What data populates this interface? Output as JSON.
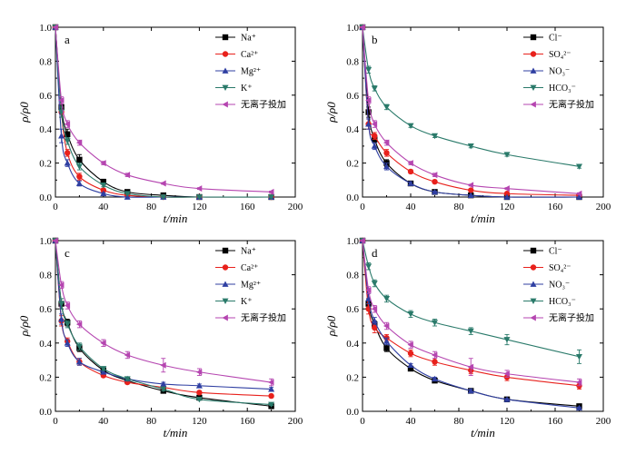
{
  "chart_data": [
    {
      "panel": "a",
      "type": "line",
      "xlabel": "t/min",
      "ylabel": "ρ/ρ0",
      "xlim": [
        0,
        200
      ],
      "ylim": [
        0,
        1.0
      ],
      "xticks": [
        0,
        40,
        80,
        120,
        160,
        200
      ],
      "yticks": [
        0.0,
        0.2,
        0.4,
        0.6,
        0.8,
        1.0
      ],
      "series": [
        {
          "name": "Na⁺",
          "color": "#000000",
          "marker": "square",
          "x": [
            0,
            5,
            10,
            20,
            40,
            60,
            90,
            120,
            180
          ],
          "y": [
            1.0,
            0.53,
            0.37,
            0.22,
            0.09,
            0.03,
            0.01,
            0.0,
            0.0
          ],
          "err": [
            0,
            0.04,
            0.03,
            0.03,
            0.015,
            0.01,
            0.005,
            0,
            0
          ]
        },
        {
          "name": "Ca²⁺",
          "color": "#e8211c",
          "marker": "circle",
          "x": [
            0,
            5,
            10,
            20,
            40,
            60,
            90,
            120,
            180
          ],
          "y": [
            1.0,
            0.5,
            0.26,
            0.12,
            0.04,
            0.01,
            0.0,
            0.0,
            0.0
          ],
          "err": [
            0,
            0.03,
            0.02,
            0.02,
            0.01,
            0.005,
            0,
            0,
            0
          ]
        },
        {
          "name": "Mg²⁺",
          "color": "#2f3fa2",
          "marker": "triangle-up",
          "x": [
            0,
            5,
            10,
            20,
            40,
            60,
            90,
            120,
            180
          ],
          "y": [
            1.0,
            0.36,
            0.2,
            0.08,
            0.02,
            0.0,
            0.0,
            0.0,
            0.0
          ],
          "err": [
            0,
            0.04,
            0.02,
            0.015,
            0.005,
            0,
            0,
            0,
            0
          ]
        },
        {
          "name": "K⁺",
          "color": "#2a7a6a",
          "marker": "triangle-down",
          "x": [
            0,
            5,
            10,
            20,
            40,
            60,
            90,
            120,
            180
          ],
          "y": [
            1.0,
            0.5,
            0.33,
            0.18,
            0.07,
            0.02,
            0.0,
            0.0,
            0.0
          ],
          "err": [
            0,
            0.03,
            0.02,
            0.02,
            0.01,
            0.005,
            0,
            0,
            0
          ]
        },
        {
          "name": "无离子投加",
          "color": "#b545b0",
          "marker": "triangle-left",
          "x": [
            0,
            5,
            10,
            20,
            40,
            60,
            90,
            120,
            180
          ],
          "y": [
            1.0,
            0.57,
            0.43,
            0.32,
            0.2,
            0.13,
            0.08,
            0.05,
            0.03
          ],
          "err": [
            0,
            0.02,
            0.02,
            0.015,
            0.01,
            0.01,
            0.005,
            0.005,
            0.005
          ]
        }
      ]
    },
    {
      "panel": "b",
      "type": "line",
      "xlabel": "t/min",
      "ylabel": "ρ/ρ0",
      "xlim": [
        0,
        200
      ],
      "ylim": [
        0,
        1.0
      ],
      "xticks": [
        0,
        40,
        80,
        120,
        160,
        200
      ],
      "yticks": [
        0.0,
        0.2,
        0.4,
        0.6,
        0.8,
        1.0
      ],
      "series": [
        {
          "name": "Cl⁻",
          "color": "#000000",
          "marker": "square",
          "x": [
            0,
            5,
            10,
            20,
            40,
            60,
            90,
            120,
            180
          ],
          "y": [
            1.0,
            0.5,
            0.34,
            0.2,
            0.08,
            0.03,
            0.01,
            0.0,
            0.0
          ],
          "err": [
            0,
            0.03,
            0.02,
            0.02,
            0.01,
            0.005,
            0,
            0,
            0
          ]
        },
        {
          "name": "SO₄²⁻",
          "color": "#e8211c",
          "marker": "circle",
          "x": [
            0,
            5,
            10,
            20,
            40,
            60,
            90,
            120,
            180
          ],
          "y": [
            1.0,
            0.43,
            0.36,
            0.26,
            0.15,
            0.09,
            0.04,
            0.02,
            0.01
          ],
          "err": [
            0,
            0.03,
            0.02,
            0.02,
            0.01,
            0.01,
            0.005,
            0.005,
            0
          ]
        },
        {
          "name": "NO₃⁻",
          "color": "#2f3fa2",
          "marker": "triangle-up",
          "x": [
            0,
            5,
            10,
            20,
            40,
            60,
            90,
            120,
            180
          ],
          "y": [
            1.0,
            0.43,
            0.3,
            0.18,
            0.08,
            0.03,
            0.01,
            0.0,
            0.0
          ],
          "err": [
            0,
            0.03,
            0.02,
            0.02,
            0.01,
            0.005,
            0,
            0,
            0
          ]
        },
        {
          "name": "HCO₃⁻",
          "color": "#2a7a6a",
          "marker": "triangle-down",
          "x": [
            0,
            5,
            10,
            20,
            40,
            60,
            90,
            120,
            180
          ],
          "y": [
            1.0,
            0.75,
            0.64,
            0.53,
            0.42,
            0.36,
            0.3,
            0.25,
            0.18
          ],
          "err": [
            0,
            0.02,
            0.015,
            0.015,
            0.01,
            0.01,
            0.01,
            0.01,
            0.01
          ]
        },
        {
          "name": "无离子投加",
          "color": "#b545b0",
          "marker": "triangle-left",
          "x": [
            0,
            5,
            10,
            20,
            40,
            60,
            90,
            120,
            180
          ],
          "y": [
            1.0,
            0.57,
            0.43,
            0.32,
            0.2,
            0.13,
            0.07,
            0.05,
            0.02
          ],
          "err": [
            0,
            0.02,
            0.02,
            0.015,
            0.01,
            0.01,
            0.005,
            0.005,
            0.005
          ]
        }
      ]
    },
    {
      "panel": "c",
      "type": "line",
      "xlabel": "t/min",
      "ylabel": "ρ/ρ0",
      "xlim": [
        0,
        200
      ],
      "ylim": [
        0,
        1.0
      ],
      "xticks": [
        0,
        40,
        80,
        120,
        160,
        200
      ],
      "yticks": [
        0.0,
        0.2,
        0.4,
        0.6,
        0.8,
        1.0
      ],
      "series": [
        {
          "name": "Na⁺",
          "color": "#000000",
          "marker": "square",
          "x": [
            0,
            5,
            10,
            20,
            40,
            60,
            90,
            120,
            180
          ],
          "y": [
            1.0,
            0.63,
            0.52,
            0.37,
            0.24,
            0.18,
            0.12,
            0.08,
            0.03
          ],
          "err": [
            0,
            0.03,
            0.02,
            0.02,
            0.01,
            0.01,
            0.01,
            0.005,
            0.005
          ]
        },
        {
          "name": "Ca²⁺",
          "color": "#e8211c",
          "marker": "circle",
          "x": [
            0,
            5,
            10,
            20,
            40,
            60,
            90,
            120,
            180
          ],
          "y": [
            1.0,
            0.53,
            0.41,
            0.29,
            0.21,
            0.17,
            0.14,
            0.11,
            0.09
          ],
          "err": [
            0,
            0.03,
            0.02,
            0.02,
            0.01,
            0.01,
            0.01,
            0.01,
            0.01
          ]
        },
        {
          "name": "Mg²⁺",
          "color": "#2f3fa2",
          "marker": "triangle-up",
          "x": [
            0,
            5,
            10,
            20,
            40,
            60,
            90,
            120,
            180
          ],
          "y": [
            1.0,
            0.54,
            0.4,
            0.29,
            0.23,
            0.19,
            0.16,
            0.15,
            0.13
          ],
          "err": [
            0,
            0.03,
            0.02,
            0.02,
            0.01,
            0.01,
            0.01,
            0.01,
            0.01
          ]
        },
        {
          "name": "K⁺",
          "color": "#2a7a6a",
          "marker": "triangle-down",
          "x": [
            0,
            5,
            10,
            20,
            40,
            60,
            90,
            120,
            180
          ],
          "y": [
            1.0,
            0.63,
            0.51,
            0.38,
            0.25,
            0.19,
            0.13,
            0.07,
            0.04
          ],
          "err": [
            0,
            0.03,
            0.02,
            0.02,
            0.01,
            0.01,
            0.01,
            0.005,
            0.005
          ]
        },
        {
          "name": "无离子投加",
          "color": "#b545b0",
          "marker": "triangle-left",
          "x": [
            0,
            5,
            10,
            20,
            40,
            60,
            90,
            120,
            180
          ],
          "y": [
            1.0,
            0.74,
            0.62,
            0.51,
            0.4,
            0.33,
            0.27,
            0.23,
            0.17
          ],
          "err": [
            0,
            0.02,
            0.02,
            0.02,
            0.02,
            0.02,
            0.04,
            0.02,
            0.02
          ]
        }
      ]
    },
    {
      "panel": "d",
      "type": "line",
      "xlabel": "t/min",
      "ylabel": "ρ/ρ0",
      "xlim": [
        0,
        200
      ],
      "ylim": [
        0,
        1.0
      ],
      "xticks": [
        0,
        40,
        80,
        120,
        160,
        200
      ],
      "yticks": [
        0.0,
        0.2,
        0.4,
        0.6,
        0.8,
        1.0
      ],
      "series": [
        {
          "name": "Cl⁻",
          "color": "#000000",
          "marker": "square",
          "x": [
            0,
            5,
            10,
            20,
            40,
            60,
            90,
            120,
            180
          ],
          "y": [
            1.0,
            0.63,
            0.51,
            0.37,
            0.25,
            0.18,
            0.12,
            0.07,
            0.03
          ],
          "err": [
            0,
            0.03,
            0.02,
            0.02,
            0.01,
            0.01,
            0.01,
            0.005,
            0.005
          ]
        },
        {
          "name": "SO₄²⁻",
          "color": "#e8211c",
          "marker": "circle",
          "x": [
            0,
            5,
            10,
            20,
            40,
            60,
            90,
            120,
            180
          ],
          "y": [
            1.0,
            0.6,
            0.49,
            0.43,
            0.34,
            0.29,
            0.24,
            0.2,
            0.15
          ],
          "err": [
            0,
            0.03,
            0.03,
            0.02,
            0.02,
            0.02,
            0.02,
            0.02,
            0.02
          ]
        },
        {
          "name": "NO₃⁻",
          "color": "#2f3fa2",
          "marker": "triangle-up",
          "x": [
            0,
            5,
            10,
            20,
            40,
            60,
            90,
            120,
            180
          ],
          "y": [
            1.0,
            0.66,
            0.53,
            0.41,
            0.27,
            0.19,
            0.12,
            0.07,
            0.02
          ],
          "err": [
            0,
            0.03,
            0.02,
            0.02,
            0.01,
            0.01,
            0.01,
            0.005,
            0.005
          ]
        },
        {
          "name": "HCO₃⁻",
          "color": "#2a7a6a",
          "marker": "triangle-down",
          "x": [
            0,
            5,
            10,
            20,
            40,
            60,
            90,
            120,
            180
          ],
          "y": [
            1.0,
            0.85,
            0.75,
            0.66,
            0.57,
            0.52,
            0.47,
            0.42,
            0.32
          ],
          "err": [
            0,
            0.02,
            0.02,
            0.02,
            0.02,
            0.02,
            0.02,
            0.03,
            0.04
          ]
        },
        {
          "name": "无离子投加",
          "color": "#b545b0",
          "marker": "triangle-left",
          "x": [
            0,
            5,
            10,
            20,
            40,
            60,
            90,
            120,
            180
          ],
          "y": [
            1.0,
            0.71,
            0.6,
            0.5,
            0.39,
            0.33,
            0.26,
            0.22,
            0.17
          ],
          "err": [
            0,
            0.02,
            0.02,
            0.02,
            0.02,
            0.02,
            0.05,
            0.02,
            0.02
          ]
        }
      ]
    }
  ]
}
